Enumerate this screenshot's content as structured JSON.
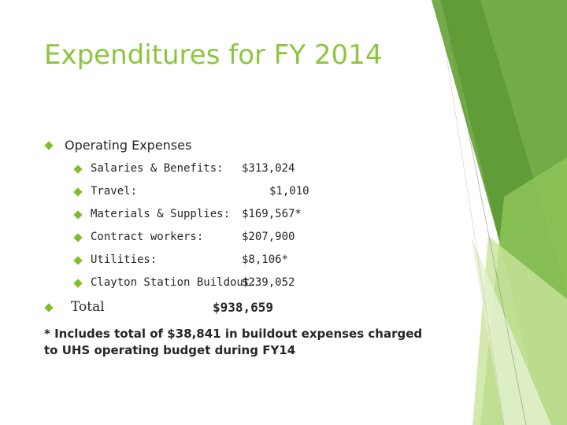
{
  "slide": {
    "title": "Expenditures for FY 2014",
    "section_label": "Operating Expenses",
    "items": [
      {
        "label": "Salaries & Benefits:",
        "value": "$313,024"
      },
      {
        "label": "Travel:",
        "value": "$1,010"
      },
      {
        "label": "Materials & Supplies:",
        "value": "$169,567*"
      },
      {
        "label": "Contract workers:",
        "value": "$207,900"
      },
      {
        "label": "Utilities:",
        "value": "$8,106*"
      },
      {
        "label": "Clayton Station Buildout:",
        "value": "$239,052"
      }
    ],
    "total_label": "Total",
    "total_value": "$938,659",
    "footnote": "* Includes total of $38,841 in buildout expenses charged to UHS operating budget during FY14"
  },
  "theme": {
    "accent": "#8cc63f",
    "bullet": "#7fbf26",
    "decor_dark": "#5e9a35",
    "decor_light": "#c8e39a"
  }
}
